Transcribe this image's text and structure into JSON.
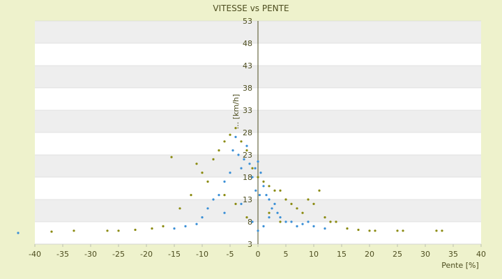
{
  "chart_data": {
    "type": "scatter",
    "title": "VITESSE vs PENTE",
    "xlabel": "Pente [%]",
    "ylabel": "... [km/h]",
    "xlim": [
      -40,
      40
    ],
    "ylim": [
      3,
      53
    ],
    "x_ticks": [
      -40,
      -35,
      -30,
      -25,
      -20,
      -15,
      -10,
      -5,
      0,
      5,
      10,
      15,
      20,
      25,
      30,
      35,
      40
    ],
    "y_ticks": [
      3,
      8,
      13,
      18,
      23,
      28,
      33,
      38,
      43,
      48,
      53
    ],
    "grid": "horizontal alternating bands",
    "legend": "none",
    "series": [
      {
        "color": "#3a8fd6",
        "marker": "dot",
        "points": [
          [
            -43,
            5.5
          ],
          [
            -15,
            6.5
          ],
          [
            -13,
            7
          ],
          [
            -11,
            7.5
          ],
          [
            -10,
            9
          ],
          [
            -9,
            11
          ],
          [
            -8,
            13
          ],
          [
            -7,
            14
          ],
          [
            -6,
            17
          ],
          [
            -5,
            19
          ],
          [
            -4.5,
            24
          ],
          [
            -4,
            27
          ],
          [
            -3.5,
            23
          ],
          [
            -3,
            20
          ],
          [
            -2.5,
            22
          ],
          [
            -2,
            25
          ],
          [
            -1.5,
            21
          ],
          [
            -1,
            18
          ],
          [
            -0.5,
            20
          ],
          [
            0,
            21.5
          ],
          [
            0.5,
            19
          ],
          [
            1,
            16
          ],
          [
            1.5,
            14
          ],
          [
            2,
            13
          ],
          [
            2.5,
            11
          ],
          [
            3,
            12
          ],
          [
            3.5,
            10
          ],
          [
            4,
            9
          ],
          [
            5,
            8
          ],
          [
            6,
            8
          ],
          [
            7,
            7
          ],
          [
            8,
            7.5
          ],
          [
            9,
            8
          ],
          [
            10,
            7
          ],
          [
            12,
            6.5
          ],
          [
            -6,
            10
          ],
          [
            -3,
            12
          ],
          [
            -1,
            8
          ],
          [
            0,
            6
          ],
          [
            1,
            7
          ],
          [
            2,
            9
          ],
          [
            0.3,
            14
          ],
          [
            -0.4,
            15
          ]
        ]
      },
      {
        "color": "#8a8a10",
        "marker": "dot",
        "points": [
          [
            -37,
            5.8
          ],
          [
            -33,
            6
          ],
          [
            -27,
            6
          ],
          [
            -25,
            6
          ],
          [
            -22,
            6.2
          ],
          [
            -19,
            6.5
          ],
          [
            -17,
            7
          ],
          [
            -15.5,
            22.5
          ],
          [
            -14,
            11
          ],
          [
            -12,
            14
          ],
          [
            -11,
            21
          ],
          [
            -10,
            19
          ],
          [
            -9,
            17
          ],
          [
            -8,
            22
          ],
          [
            -7,
            24
          ],
          [
            -6,
            26
          ],
          [
            -5,
            27.5
          ],
          [
            -4,
            29
          ],
          [
            -3,
            26
          ],
          [
            -2,
            24
          ],
          [
            -1,
            20
          ],
          [
            0,
            18
          ],
          [
            1,
            17
          ],
          [
            2,
            16
          ],
          [
            3,
            15
          ],
          [
            4,
            15
          ],
          [
            5,
            13
          ],
          [
            6,
            12
          ],
          [
            7,
            11
          ],
          [
            8,
            10
          ],
          [
            9,
            13
          ],
          [
            10,
            12
          ],
          [
            11,
            15
          ],
          [
            12,
            9
          ],
          [
            13,
            8
          ],
          [
            14,
            8
          ],
          [
            16,
            6.5
          ],
          [
            18,
            6.2
          ],
          [
            20,
            6
          ],
          [
            21,
            6
          ],
          [
            25,
            6
          ],
          [
            26,
            6
          ],
          [
            32,
            6
          ],
          [
            33,
            6
          ],
          [
            -6,
            14
          ],
          [
            -4,
            12
          ],
          [
            -2,
            9
          ],
          [
            2,
            10
          ],
          [
            4,
            8
          ]
        ]
      }
    ]
  }
}
